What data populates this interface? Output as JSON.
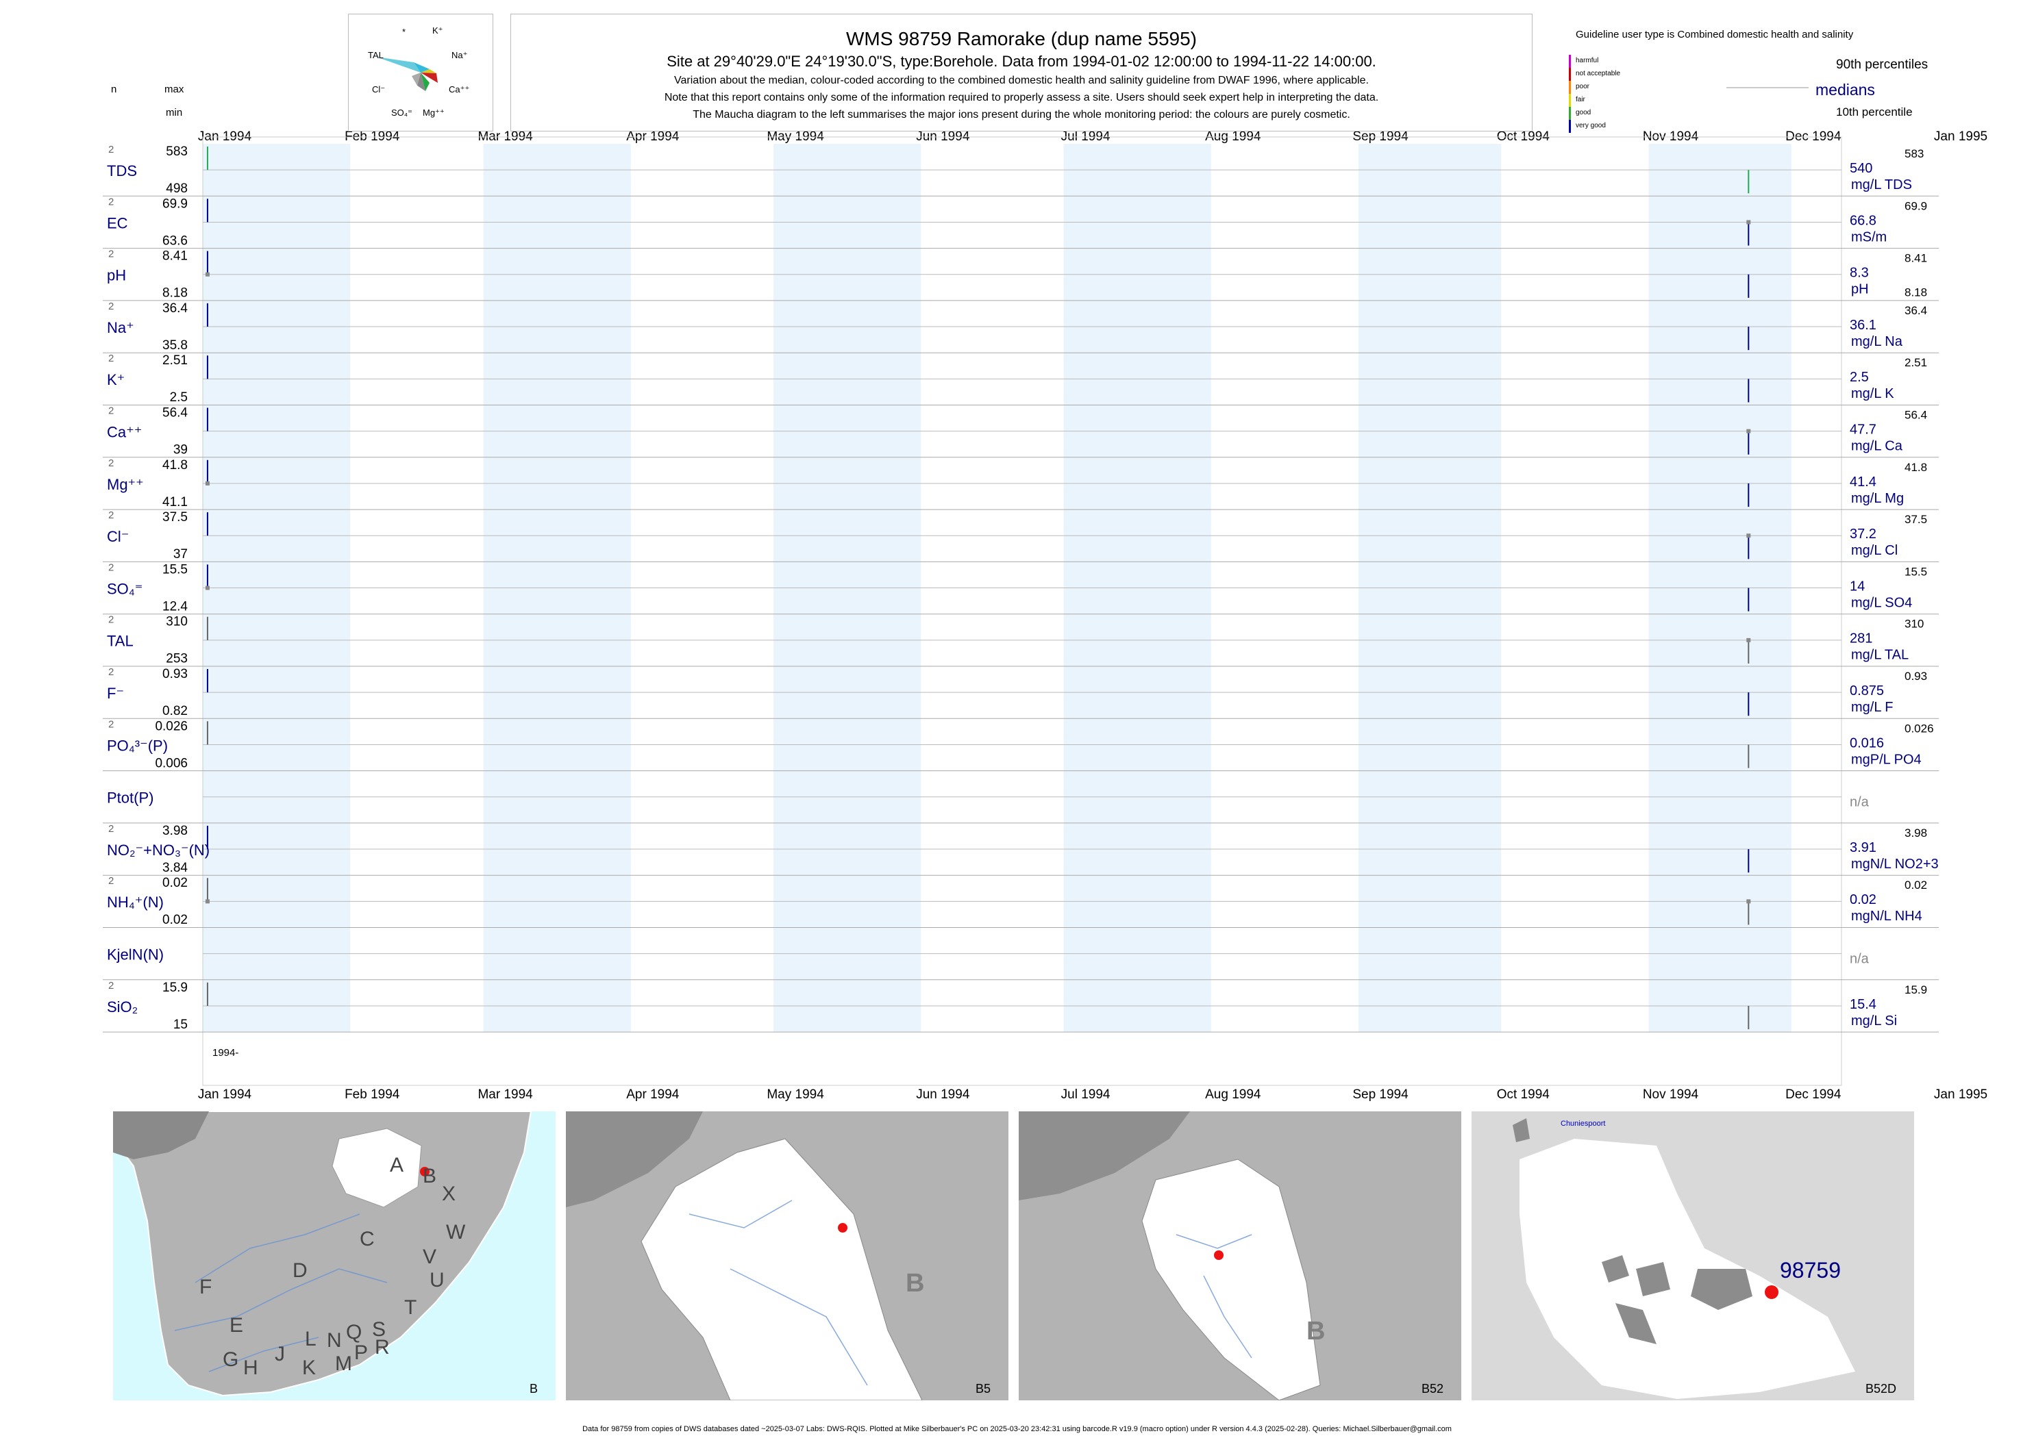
{
  "header": {
    "title": "WMS 98759  Ramorake (dup name 5595)",
    "site_line": "Site at 29°40'29.0\"E 24°19'30.0\"S, type:Borehole.  Data from 1994-01-02 12:00:00 to 1994-11-22 14:00:00.",
    "note1": "Variation about the median,  colour-coded according to the combined domestic health and salinity guideline from DWAF 1996, where applicable.",
    "note2": "Note that this report contains only some of the information required to properly assess a site. Users should seek expert help in interpreting the data.",
    "note3": "The Maucha diagram to the left summarises the major ions present during the whole monitoring period: the colours are purely cosmetic."
  },
  "maucha": {
    "labels": [
      "*",
      "K⁺",
      "TAL",
      "Na⁺",
      "Cl⁻",
      "Ca⁺⁺",
      "SO₄⁼",
      "Mg⁺⁺"
    ]
  },
  "column_headers": {
    "n": "n",
    "max": "max",
    "min": "min"
  },
  "legend": {
    "guideline": "Guideline user type is Combined domestic health and salinity",
    "classes": [
      {
        "label": "harmful",
        "color": "#cc00cc"
      },
      {
        "label": "not acceptable",
        "color": "#cc0000"
      },
      {
        "label": "poor",
        "color": "#ff8800"
      },
      {
        "label": "fair",
        "color": "#dddd00"
      },
      {
        "label": "good",
        "color": "#33aa33"
      },
      {
        "label": "very good",
        "color": "#0000aa"
      }
    ],
    "p90": "90th percentiles",
    "median": "medians",
    "p10": "10th percentile"
  },
  "chart_data": {
    "type": "scatter",
    "x_range": [
      "1994-01-01",
      "1995-01-01"
    ],
    "months": [
      "Jan 1994",
      "Feb 1994",
      "Mar 1994",
      "Apr 1994",
      "May 1994",
      "Jun 1994",
      "Jul 1994",
      "Aug 1994",
      "Sep 1994",
      "Oct 1994",
      "Nov 1994",
      "Dec 1994",
      "Jan 1995"
    ],
    "sample_dates": [
      "1994-01-02",
      "1994-11-22"
    ],
    "year_label": "1994-",
    "parameters": [
      {
        "name": "TDS",
        "n": "2",
        "max": "583",
        "min": "498",
        "median": "540",
        "unit": "mg/L TDS",
        "p90": "583",
        "p10": "",
        "samples": [
          {
            "lo": 498,
            "hi": 583,
            "color": "#22aa55",
            "dot": false
          },
          {
            "lo": 498,
            "hi": 583,
            "color": "#22aa55",
            "dot": false
          }
        ]
      },
      {
        "name": "EC",
        "n": "2",
        "max": "69.9",
        "min": "63.6",
        "median": "66.8",
        "unit": "mS/m",
        "p90": "69.9",
        "p10": "",
        "samples": [
          {
            "lo": 63.6,
            "hi": 69.9,
            "color": "#000099",
            "dot": false
          },
          {
            "lo": 63.6,
            "hi": 69.9,
            "color": "#000099",
            "dot": true
          }
        ]
      },
      {
        "name": "pH",
        "n": "2",
        "max": "8.41",
        "min": "8.18",
        "median": "8.3",
        "unit": "pH",
        "p90": "8.41",
        "p10": "8.18",
        "samples": [
          {
            "lo": 8.18,
            "hi": 8.41,
            "color": "#000099",
            "dot": true
          },
          {
            "lo": 8.18,
            "hi": 8.41,
            "color": "#000099",
            "dot": false
          }
        ]
      },
      {
        "name": "Na⁺",
        "n": "2",
        "max": "36.4",
        "min": "35.8",
        "median": "36.1",
        "unit": "mg/L Na",
        "p90": "36.4",
        "p10": "",
        "samples": [
          {
            "lo": 35.8,
            "hi": 36.4,
            "color": "#000099",
            "dot": false
          },
          {
            "lo": 35.8,
            "hi": 36.4,
            "color": "#000099",
            "dot": false
          }
        ]
      },
      {
        "name": "K⁺",
        "n": "2",
        "max": "2.51",
        "min": "2.5",
        "median": "2.5",
        "unit": "mg/L K",
        "p90": "2.51",
        "p10": "",
        "samples": [
          {
            "lo": 2.5,
            "hi": 2.51,
            "color": "#000099",
            "dot": false
          },
          {
            "lo": 2.5,
            "hi": 2.51,
            "color": "#000099",
            "dot": false
          }
        ]
      },
      {
        "name": "Ca⁺⁺",
        "n": "2",
        "max": "56.4",
        "min": "39",
        "median": "47.7",
        "unit": "mg/L Ca",
        "p90": "56.4",
        "p10": "",
        "samples": [
          {
            "lo": 39,
            "hi": 56.4,
            "color": "#000099",
            "dot": false
          },
          {
            "lo": 39,
            "hi": 56.4,
            "color": "#000099",
            "dot": true
          }
        ]
      },
      {
        "name": "Mg⁺⁺",
        "n": "2",
        "max": "41.8",
        "min": "41.1",
        "median": "41.4",
        "unit": "mg/L Mg",
        "p90": "41.8",
        "p10": "",
        "samples": [
          {
            "lo": 41.1,
            "hi": 41.8,
            "color": "#000099",
            "dot": true
          },
          {
            "lo": 41.1,
            "hi": 41.8,
            "color": "#000099",
            "dot": false
          }
        ]
      },
      {
        "name": "Cl⁻",
        "n": "2",
        "max": "37.5",
        "min": "37",
        "median": "37.2",
        "unit": "mg/L Cl",
        "p90": "37.5",
        "p10": "",
        "samples": [
          {
            "lo": 37,
            "hi": 37.5,
            "color": "#000099",
            "dot": false
          },
          {
            "lo": 37,
            "hi": 37.5,
            "color": "#000099",
            "dot": true
          }
        ]
      },
      {
        "name": "SO₄⁼",
        "n": "2",
        "max": "15.5",
        "min": "12.4",
        "median": "14",
        "unit": "mg/L SO4",
        "p90": "15.5",
        "p10": "",
        "samples": [
          {
            "lo": 12.4,
            "hi": 15.5,
            "color": "#000099",
            "dot": true
          },
          {
            "lo": 12.4,
            "hi": 15.5,
            "color": "#000099",
            "dot": false
          }
        ]
      },
      {
        "name": "TAL",
        "n": "2",
        "max": "310",
        "min": "253",
        "median": "281",
        "unit": "mg/L TAL",
        "p90": "310",
        "p10": "",
        "samples": [
          {
            "lo": 253,
            "hi": 310,
            "color": "#666666",
            "dot": false
          },
          {
            "lo": 253,
            "hi": 310,
            "color": "#666666",
            "dot": true
          }
        ]
      },
      {
        "name": "F⁻",
        "n": "2",
        "max": "0.93",
        "min": "0.82",
        "median": "0.875",
        "unit": "mg/L F",
        "p90": "0.93",
        "p10": "",
        "samples": [
          {
            "lo": 0.82,
            "hi": 0.93,
            "color": "#000099",
            "dot": false
          },
          {
            "lo": 0.82,
            "hi": 0.93,
            "color": "#000099",
            "dot": false
          }
        ]
      },
      {
        "name": "PO₄³⁻(P)",
        "n": "2",
        "max": "0.026",
        "min": "0.006",
        "median": "0.016",
        "unit": "mgP/L PO4",
        "p90": "0.026",
        "p10": "",
        "samples": [
          {
            "lo": 0.006,
            "hi": 0.026,
            "color": "#666666",
            "dot": false
          },
          {
            "lo": 0.006,
            "hi": 0.026,
            "color": "#666666",
            "dot": false
          }
        ]
      },
      {
        "name": "Ptot(P)",
        "n": "",
        "max": "",
        "min": "",
        "median": "n/a",
        "unit": "",
        "p90": "",
        "p10": "",
        "samples": []
      },
      {
        "name": "NO₂⁻+NO₃⁻(N)",
        "n": "2",
        "max": "3.98",
        "min": "3.84",
        "median": "3.91",
        "unit": "mgN/L NO2+3",
        "p90": "3.98",
        "p10": "",
        "samples": [
          {
            "lo": 3.84,
            "hi": 3.98,
            "color": "#000099",
            "dot": false
          },
          {
            "lo": 3.84,
            "hi": 3.98,
            "color": "#000099",
            "dot": false
          }
        ]
      },
      {
        "name": "NH₄⁺(N)",
        "n": "2",
        "max": "0.02",
        "min": "0.02",
        "median": "0.02",
        "unit": "mgN/L NH4",
        "p90": "0.02",
        "p10": "",
        "samples": [
          {
            "lo": 0.02,
            "hi": 0.02,
            "color": "#666666",
            "dot": true
          },
          {
            "lo": 0.02,
            "hi": 0.02,
            "color": "#666666",
            "dot": true
          }
        ]
      },
      {
        "name": "KjelN(N)",
        "n": "",
        "max": "",
        "min": "",
        "median": "n/a",
        "unit": "",
        "p90": "",
        "p10": "",
        "samples": []
      },
      {
        "name": "SiO₂",
        "n": "2",
        "max": "15.9",
        "min": "15",
        "median": "15.4",
        "unit": "mg/L Si",
        "p90": "15.9",
        "p10": "",
        "samples": [
          {
            "lo": 15,
            "hi": 15.9,
            "color": "#666666",
            "dot": false
          },
          {
            "lo": 15,
            "hi": 15.9,
            "color": "#666666",
            "dot": false
          }
        ]
      }
    ]
  },
  "maps": [
    {
      "caption": "B",
      "labels": [
        "A",
        "B",
        "X",
        "C",
        "W",
        "D",
        "V",
        "U",
        "F",
        "T",
        "E",
        "L",
        "N",
        "Q",
        "S",
        "G",
        "H",
        "J",
        "K",
        "M",
        "P",
        "R"
      ]
    },
    {
      "caption": "B5",
      "region_label": "B"
    },
    {
      "caption": "B52",
      "region_label": "B"
    },
    {
      "caption": "B52D",
      "site_label": "98759",
      "town_label": "Chuniespoort"
    }
  ],
  "footer": "Data for 98759 from copies of DWS databases dated ~2025-03-07 Labs: DWS-RQIS. Plotted at Mike Silberbauer's PC on 2025-03-20 23:42:31 using barcode.R v19.9 (macro option) under R version 4.4.3 (2025-02-28). Queries: Michael.Silberbauer@gmail.com"
}
